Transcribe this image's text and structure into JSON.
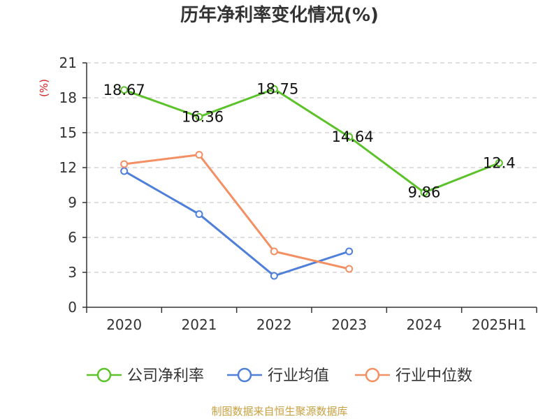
{
  "chart_data": {
    "type": "line",
    "title": "历年净利率变化情况(%)",
    "ylabel": "(%)",
    "categories": [
      "2020",
      "2021",
      "2022",
      "2023",
      "2024",
      "2025H1"
    ],
    "ylim": [
      0,
      21
    ],
    "yticks": [
      0,
      3,
      6,
      9,
      12,
      15,
      18,
      21
    ],
    "grid": "horizontal-dashed",
    "legend_position": "bottom",
    "series": [
      {
        "name": "公司净利率",
        "color": "#5cc22a",
        "values": [
          18.67,
          16.36,
          18.75,
          14.64,
          9.86,
          12.4
        ],
        "labels": [
          "18.67",
          "16.36",
          "18.75",
          "14.64",
          "9.86",
          "12.4"
        ]
      },
      {
        "name": "行业均值",
        "color": "#4e7fd9",
        "values": [
          11.7,
          8.0,
          2.7,
          4.8,
          null,
          null
        ]
      },
      {
        "name": "行业中位数",
        "color": "#f39063",
        "values": [
          12.3,
          13.1,
          4.8,
          3.3,
          null,
          null
        ]
      }
    ]
  },
  "source": "制图数据来自恒生聚源数据库",
  "colors": {
    "source": "#c8a040",
    "unit": "#d42020",
    "axis": "#333333",
    "grid": "#cccccc"
  }
}
